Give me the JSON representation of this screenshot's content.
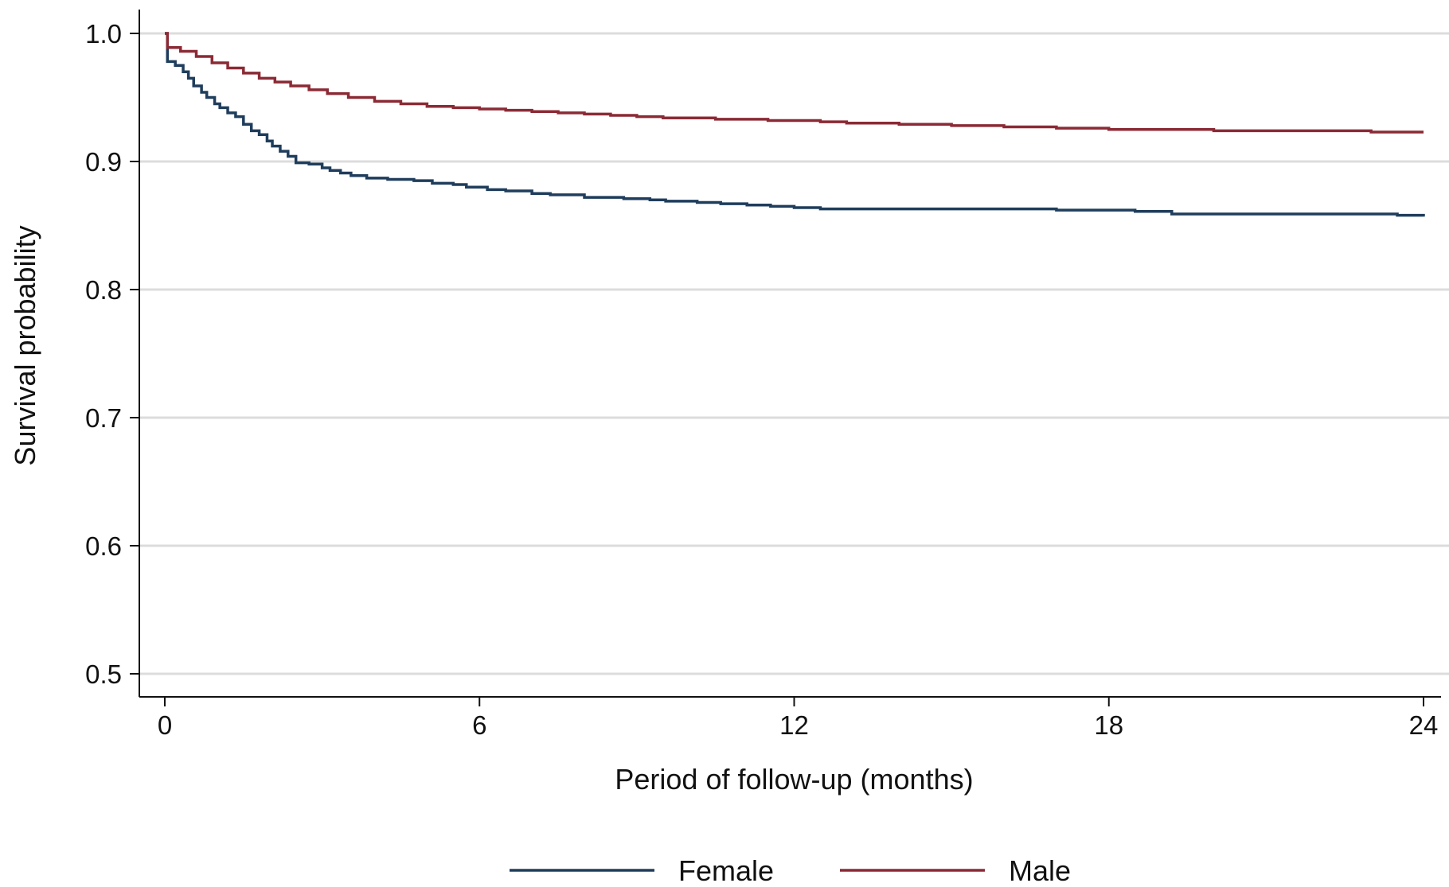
{
  "chart_data": {
    "type": "line",
    "title": "",
    "xlabel": "Period of follow-up (months)",
    "ylabel": "Survival probability",
    "xlim": [
      0,
      24
    ],
    "ylim": [
      0.5,
      1.0
    ],
    "x_ticks": [
      "0",
      "6",
      "12",
      "18",
      "24"
    ],
    "y_ticks": [
      "1.0",
      "0.9",
      "0.8",
      "0.7",
      "0.6",
      "0.5"
    ],
    "grid": "horizontal",
    "legend_position": "bottom",
    "step": true,
    "series": [
      {
        "name": "Female",
        "color": "#1f3d5c",
        "x": [
          0,
          0.05,
          0.2,
          0.35,
          0.45,
          0.55,
          0.7,
          0.8,
          0.95,
          1.05,
          1.2,
          1.35,
          1.5,
          1.65,
          1.8,
          1.95,
          2.05,
          2.2,
          2.35,
          2.5,
          2.75,
          3.0,
          3.15,
          3.35,
          3.55,
          3.85,
          4.25,
          4.75,
          5.1,
          5.5,
          5.75,
          6.15,
          6.5,
          7.0,
          7.35,
          8.0,
          8.75,
          9.25,
          9.55,
          10.15,
          10.6,
          11.1,
          11.55,
          12.0,
          12.5,
          13.0,
          13.5,
          14.0,
          15.0,
          16.0,
          16.5,
          17.0,
          17.5,
          18.0,
          18.5,
          19.2,
          20.0,
          21.0,
          22.0,
          23.0,
          23.5,
          24.0
        ],
        "y": [
          1.0,
          0.978,
          0.975,
          0.97,
          0.965,
          0.959,
          0.954,
          0.95,
          0.945,
          0.942,
          0.938,
          0.935,
          0.929,
          0.924,
          0.921,
          0.916,
          0.912,
          0.908,
          0.904,
          0.899,
          0.898,
          0.895,
          0.893,
          0.891,
          0.889,
          0.887,
          0.886,
          0.885,
          0.883,
          0.882,
          0.88,
          0.878,
          0.877,
          0.875,
          0.874,
          0.872,
          0.871,
          0.87,
          0.869,
          0.868,
          0.867,
          0.866,
          0.865,
          0.864,
          0.863,
          0.863,
          0.863,
          0.863,
          0.863,
          0.863,
          0.863,
          0.862,
          0.862,
          0.862,
          0.861,
          0.859,
          0.859,
          0.859,
          0.859,
          0.859,
          0.858,
          0.857
        ]
      },
      {
        "name": "Male",
        "color": "#8b2a35",
        "x": [
          0,
          0.05,
          0.3,
          0.6,
          0.9,
          1.2,
          1.5,
          1.8,
          2.1,
          2.4,
          2.75,
          3.1,
          3.5,
          4.0,
          4.5,
          5.0,
          5.5,
          6.0,
          6.5,
          7.0,
          7.5,
          8.0,
          8.5,
          9.0,
          9.5,
          10.0,
          10.5,
          11.0,
          11.5,
          12.0,
          12.5,
          13.0,
          14.0,
          15.0,
          16.0,
          17.0,
          18.0,
          19.0,
          20.0,
          21.0,
          22.0,
          23.0,
          24.0
        ],
        "y": [
          1.0,
          0.989,
          0.986,
          0.982,
          0.977,
          0.973,
          0.969,
          0.965,
          0.962,
          0.959,
          0.956,
          0.953,
          0.95,
          0.947,
          0.945,
          0.943,
          0.942,
          0.941,
          0.94,
          0.939,
          0.938,
          0.937,
          0.936,
          0.935,
          0.934,
          0.934,
          0.933,
          0.933,
          0.932,
          0.932,
          0.931,
          0.93,
          0.929,
          0.928,
          0.927,
          0.926,
          0.925,
          0.925,
          0.924,
          0.924,
          0.924,
          0.923,
          0.923
        ]
      }
    ]
  }
}
